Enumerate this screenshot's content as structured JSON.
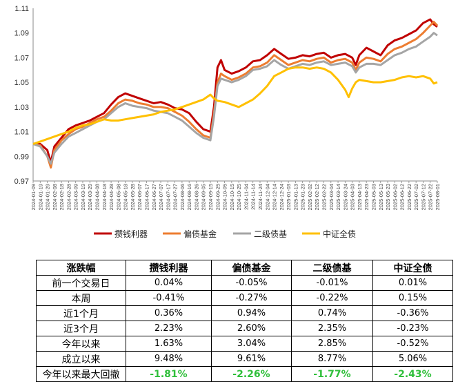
{
  "chart_data": {
    "type": "line",
    "ylim": [
      0.97,
      1.11
    ],
    "yticks": [
      "0.97",
      "0.99",
      "1.01",
      "1.03",
      "1.05",
      "1.07",
      "1.09",
      "1.11"
    ],
    "x_ticks": [
      "2024-01-09",
      "2024-01-19",
      "2024-01-29",
      "2024-02-08",
      "2024-02-18",
      "2024-02-28",
      "2024-03-09",
      "2024-03-19",
      "2024-03-29",
      "2024-04-08",
      "2024-04-18",
      "2024-04-28",
      "2024-05-08",
      "2024-05-18",
      "2024-05-28",
      "2024-06-07",
      "2024-06-17",
      "2024-06-27",
      "2024-07-07",
      "2024-07-17",
      "2024-07-27",
      "2024-08-06",
      "2024-08-16",
      "2024-08-26",
      "2024-09-05",
      "2024-09-15",
      "2024-09-25",
      "2024-10-05",
      "2024-10-15",
      "2024-10-25",
      "2024-11-04",
      "2024-11-14",
      "2024-11-24",
      "2024-12-04",
      "2024-12-14",
      "2024-12-24",
      "2025-01-03",
      "2025-01-13",
      "2025-01-23",
      "2025-02-02",
      "2025-02-12",
      "2025-02-22",
      "2025-03-04",
      "2025-03-14",
      "2025-03-24",
      "2025-04-03",
      "2025-04-13",
      "2025-04-23",
      "2025-05-03",
      "2025-05-13",
      "2025-05-23",
      "2025-06-02",
      "2025-06-12",
      "2025-06-22",
      "2025-07-02",
      "2025-07-12",
      "2025-07-22",
      "2025-08-01"
    ],
    "series": [
      {
        "name": "攒钱利器",
        "color": "#c00000",
        "points": [
          [
            0,
            1.0
          ],
          [
            1,
            1.0
          ],
          [
            2,
            0.995
          ],
          [
            2.5,
            0.985
          ],
          [
            3,
            0.998
          ],
          [
            4,
            1.005
          ],
          [
            5,
            1.012
          ],
          [
            6,
            1.015
          ],
          [
            7,
            1.017
          ],
          [
            8,
            1.019
          ],
          [
            9,
            1.022
          ],
          [
            10,
            1.025
          ],
          [
            11,
            1.032
          ],
          [
            12,
            1.038
          ],
          [
            13,
            1.041
          ],
          [
            14,
            1.039
          ],
          [
            15,
            1.037
          ],
          [
            16,
            1.035
          ],
          [
            17,
            1.033
          ],
          [
            18,
            1.034
          ],
          [
            19,
            1.032
          ],
          [
            20,
            1.029
          ],
          [
            21,
            1.028
          ],
          [
            22,
            1.025
          ],
          [
            23,
            1.018
          ],
          [
            24,
            1.012
          ],
          [
            25,
            1.01
          ],
          [
            25.5,
            1.03
          ],
          [
            26,
            1.062
          ],
          [
            26.5,
            1.068
          ],
          [
            27,
            1.06
          ],
          [
            28,
            1.057
          ],
          [
            29,
            1.059
          ],
          [
            30,
            1.062
          ],
          [
            31,
            1.067
          ],
          [
            32,
            1.068
          ],
          [
            33,
            1.072
          ],
          [
            34,
            1.077
          ],
          [
            35,
            1.073
          ],
          [
            36,
            1.069
          ],
          [
            37,
            1.07
          ],
          [
            38,
            1.072
          ],
          [
            39,
            1.071
          ],
          [
            40,
            1.073
          ],
          [
            41,
            1.074
          ],
          [
            42,
            1.07
          ],
          [
            43,
            1.072
          ],
          [
            44,
            1.073
          ],
          [
            45,
            1.07
          ],
          [
            45.5,
            1.064
          ],
          [
            46,
            1.072
          ],
          [
            47,
            1.078
          ],
          [
            48,
            1.075
          ],
          [
            49,
            1.072
          ],
          [
            50,
            1.08
          ],
          [
            51,
            1.084
          ],
          [
            52,
            1.086
          ],
          [
            53,
            1.089
          ],
          [
            54,
            1.092
          ],
          [
            55,
            1.098
          ],
          [
            56,
            1.101
          ],
          [
            56.5,
            1.097
          ],
          [
            57,
            1.095
          ]
        ]
      },
      {
        "name": "偏债基金",
        "color": "#ed7d31",
        "points": [
          [
            0,
            1.0
          ],
          [
            1,
            0.999
          ],
          [
            2,
            0.99
          ],
          [
            2.5,
            0.981
          ],
          [
            3,
            0.995
          ],
          [
            4,
            1.003
          ],
          [
            5,
            1.008
          ],
          [
            6,
            1.012
          ],
          [
            7,
            1.014
          ],
          [
            8,
            1.017
          ],
          [
            9,
            1.02
          ],
          [
            10,
            1.022
          ],
          [
            11,
            1.027
          ],
          [
            12,
            1.033
          ],
          [
            13,
            1.036
          ],
          [
            14,
            1.035
          ],
          [
            15,
            1.033
          ],
          [
            16,
            1.032
          ],
          [
            17,
            1.03
          ],
          [
            18,
            1.03
          ],
          [
            19,
            1.029
          ],
          [
            20,
            1.026
          ],
          [
            21,
            1.023
          ],
          [
            22,
            1.018
          ],
          [
            23,
            1.012
          ],
          [
            24,
            1.007
          ],
          [
            25,
            1.005
          ],
          [
            25.5,
            1.025
          ],
          [
            26,
            1.05
          ],
          [
            26.5,
            1.057
          ],
          [
            27,
            1.055
          ],
          [
            28,
            1.052
          ],
          [
            29,
            1.054
          ],
          [
            30,
            1.057
          ],
          [
            31,
            1.062
          ],
          [
            32,
            1.063
          ],
          [
            33,
            1.066
          ],
          [
            34,
            1.072
          ],
          [
            35,
            1.068
          ],
          [
            36,
            1.064
          ],
          [
            37,
            1.066
          ],
          [
            38,
            1.068
          ],
          [
            39,
            1.067
          ],
          [
            40,
            1.069
          ],
          [
            41,
            1.07
          ],
          [
            42,
            1.066
          ],
          [
            43,
            1.068
          ],
          [
            44,
            1.069
          ],
          [
            45,
            1.066
          ],
          [
            45.5,
            1.06
          ],
          [
            46,
            1.066
          ],
          [
            47,
            1.07
          ],
          [
            48,
            1.069
          ],
          [
            49,
            1.067
          ],
          [
            50,
            1.073
          ],
          [
            51,
            1.077
          ],
          [
            52,
            1.079
          ],
          [
            53,
            1.082
          ],
          [
            54,
            1.085
          ],
          [
            55,
            1.09
          ],
          [
            56,
            1.096
          ],
          [
            56.5,
            1.099
          ],
          [
            57,
            1.096
          ]
        ]
      },
      {
        "name": "二级债基",
        "color": "#a5a5a5",
        "points": [
          [
            0,
            1.0
          ],
          [
            1,
            0.998
          ],
          [
            2,
            0.99
          ],
          [
            2.5,
            0.984
          ],
          [
            3,
            0.993
          ],
          [
            4,
            1.0
          ],
          [
            5,
            1.006
          ],
          [
            6,
            1.009
          ],
          [
            7,
            1.012
          ],
          [
            8,
            1.015
          ],
          [
            9,
            1.018
          ],
          [
            10,
            1.02
          ],
          [
            11,
            1.025
          ],
          [
            12,
            1.03
          ],
          [
            13,
            1.033
          ],
          [
            14,
            1.031
          ],
          [
            15,
            1.03
          ],
          [
            16,
            1.029
          ],
          [
            17,
            1.027
          ],
          [
            18,
            1.026
          ],
          [
            19,
            1.025
          ],
          [
            20,
            1.022
          ],
          [
            21,
            1.019
          ],
          [
            22,
            1.014
          ],
          [
            23,
            1.009
          ],
          [
            24,
            1.005
          ],
          [
            25,
            1.003
          ],
          [
            25.5,
            1.022
          ],
          [
            26,
            1.047
          ],
          [
            26.5,
            1.053
          ],
          [
            27,
            1.052
          ],
          [
            28,
            1.05
          ],
          [
            29,
            1.052
          ],
          [
            30,
            1.055
          ],
          [
            31,
            1.06
          ],
          [
            32,
            1.061
          ],
          [
            33,
            1.063
          ],
          [
            34,
            1.068
          ],
          [
            35,
            1.064
          ],
          [
            36,
            1.061
          ],
          [
            37,
            1.063
          ],
          [
            38,
            1.065
          ],
          [
            39,
            1.064
          ],
          [
            40,
            1.066
          ],
          [
            41,
            1.067
          ],
          [
            42,
            1.064
          ],
          [
            43,
            1.065
          ],
          [
            44,
            1.066
          ],
          [
            45,
            1.063
          ],
          [
            45.5,
            1.058
          ],
          [
            46,
            1.062
          ],
          [
            47,
            1.065
          ],
          [
            48,
            1.065
          ],
          [
            49,
            1.064
          ],
          [
            50,
            1.068
          ],
          [
            51,
            1.072
          ],
          [
            52,
            1.074
          ],
          [
            53,
            1.077
          ],
          [
            54,
            1.079
          ],
          [
            55,
            1.083
          ],
          [
            56,
            1.087
          ],
          [
            56.5,
            1.09
          ],
          [
            57,
            1.088
          ]
        ]
      },
      {
        "name": "中证全债",
        "color": "#ffc000",
        "points": [
          [
            0,
            1.0
          ],
          [
            1,
            1.002
          ],
          [
            2,
            1.004
          ],
          [
            3,
            1.006
          ],
          [
            4,
            1.008
          ],
          [
            5,
            1.01
          ],
          [
            6,
            1.013
          ],
          [
            7,
            1.015
          ],
          [
            8,
            1.016
          ],
          [
            9,
            1.018
          ],
          [
            10,
            1.02
          ],
          [
            11,
            1.019
          ],
          [
            12,
            1.019
          ],
          [
            13,
            1.02
          ],
          [
            14,
            1.021
          ],
          [
            15,
            1.022
          ],
          [
            16,
            1.023
          ],
          [
            17,
            1.024
          ],
          [
            18,
            1.026
          ],
          [
            19,
            1.027
          ],
          [
            20,
            1.028
          ],
          [
            21,
            1.03
          ],
          [
            22,
            1.032
          ],
          [
            23,
            1.034
          ],
          [
            24,
            1.036
          ],
          [
            25,
            1.04
          ],
          [
            25.5,
            1.037
          ],
          [
            26,
            1.035
          ],
          [
            27,
            1.034
          ],
          [
            28,
            1.032
          ],
          [
            29,
            1.03
          ],
          [
            30,
            1.033
          ],
          [
            31,
            1.036
          ],
          [
            32,
            1.041
          ],
          [
            33,
            1.047
          ],
          [
            34,
            1.055
          ],
          [
            35,
            1.058
          ],
          [
            36,
            1.061
          ],
          [
            37,
            1.062
          ],
          [
            38,
            1.062
          ],
          [
            39,
            1.061
          ],
          [
            40,
            1.062
          ],
          [
            41,
            1.061
          ],
          [
            42,
            1.058
          ],
          [
            43,
            1.052
          ],
          [
            44,
            1.044
          ],
          [
            44.5,
            1.038
          ],
          [
            45,
            1.045
          ],
          [
            45.5,
            1.05
          ],
          [
            46,
            1.052
          ],
          [
            47,
            1.051
          ],
          [
            48,
            1.05
          ],
          [
            49,
            1.05
          ],
          [
            50,
            1.051
          ],
          [
            51,
            1.052
          ],
          [
            52,
            1.054
          ],
          [
            53,
            1.055
          ],
          [
            54,
            1.054
          ],
          [
            55,
            1.055
          ],
          [
            56,
            1.053
          ],
          [
            56.5,
            1.049
          ],
          [
            57,
            1.05
          ]
        ]
      }
    ]
  },
  "table": {
    "headers": [
      "涨跌幅",
      "攒钱利器",
      "偏债基金",
      "二级债基",
      "中证全债"
    ],
    "rows": [
      {
        "label": "前一个交易日",
        "values": [
          "0.04%",
          "-0.05%",
          "-0.01%",
          "0.01%"
        ]
      },
      {
        "label": "本周",
        "values": [
          "-0.41%",
          "-0.27%",
          "-0.22%",
          "0.15%"
        ]
      },
      {
        "label": "近1个月",
        "values": [
          "0.36%",
          "0.94%",
          "0.74%",
          "-0.36%"
        ]
      },
      {
        "label": "近3个月",
        "values": [
          "2.23%",
          "2.60%",
          "2.35%",
          "-0.23%"
        ]
      },
      {
        "label": "今年以来",
        "values": [
          "1.63%",
          "3.04%",
          "2.85%",
          "-0.52%"
        ]
      },
      {
        "label": "成立以来",
        "values": [
          "9.48%",
          "9.61%",
          "8.77%",
          "5.06%"
        ]
      },
      {
        "label": "今年以来最大回撤",
        "values": [
          "-1.81%",
          "-2.26%",
          "-1.77%",
          "-2.43%"
        ],
        "highlight_color": "#2fbf3a"
      }
    ]
  }
}
